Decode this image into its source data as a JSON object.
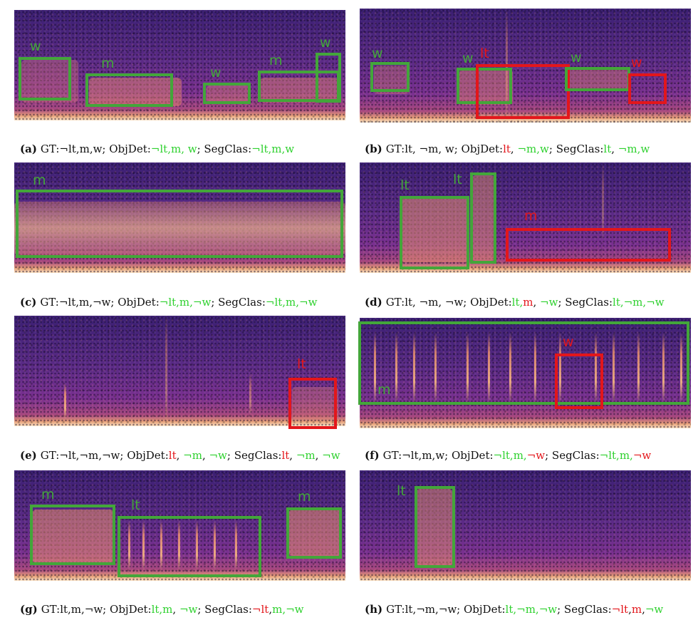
{
  "panels": [
    {
      "id": "a",
      "caption": {
        "letter": "(a)",
        "gt": "GT:¬lt,m,w; ",
        "parts": [
          {
            "t": "ObjDet:",
            "c": ""
          },
          {
            "t": "¬lt,",
            "c": "g"
          },
          {
            "t": "m, ",
            "c": "g"
          },
          {
            "t": "w",
            "c": "g"
          },
          {
            "t": "; SegClas:",
            "c": ""
          },
          {
            "t": "¬lt,",
            "c": "g"
          },
          {
            "t": "m,",
            "c": "g"
          },
          {
            "t": "w",
            "c": "g"
          }
        ]
      },
      "labels": [
        "w",
        "m",
        "w",
        "m",
        "w"
      ]
    },
    {
      "id": "b",
      "caption": {
        "letter": "(b)",
        "gt": "GT:lt, ¬m, w; ",
        "parts": [
          {
            "t": "ObjDet:",
            "c": ""
          },
          {
            "t": "lt",
            "c": "r"
          },
          {
            "t": ", ",
            "c": ""
          },
          {
            "t": "¬m,w",
            "c": "g"
          },
          {
            "t": "; SegClas:",
            "c": ""
          },
          {
            "t": "lt",
            "c": "g"
          },
          {
            "t": ", ",
            "c": ""
          },
          {
            "t": "¬m,w",
            "c": "g"
          }
        ]
      },
      "labels": [
        "w",
        "w",
        "lt",
        "w",
        "w"
      ]
    },
    {
      "id": "c",
      "caption": {
        "letter": "(c)",
        "gt": "GT:¬lt,m,¬w; ",
        "parts": [
          {
            "t": "ObjDet:",
            "c": ""
          },
          {
            "t": "¬lt,m,¬w",
            "c": "g"
          },
          {
            "t": "; SegClas:",
            "c": ""
          },
          {
            "t": "¬lt,m,¬w",
            "c": "g"
          }
        ]
      },
      "labels": [
        "m"
      ]
    },
    {
      "id": "d",
      "caption": {
        "letter": "(d)",
        "gt": "GT:lt, ¬m, ¬w; ",
        "parts": [
          {
            "t": "ObjDet:",
            "c": ""
          },
          {
            "t": "lt,",
            "c": "g"
          },
          {
            "t": "m",
            "c": "r"
          },
          {
            "t": ", ",
            "c": ""
          },
          {
            "t": "¬w",
            "c": "g"
          },
          {
            "t": "; SegClas:",
            "c": ""
          },
          {
            "t": "lt,¬m,¬w",
            "c": "g"
          }
        ]
      },
      "labels": [
        "lt",
        "lt",
        "m"
      ]
    },
    {
      "id": "e",
      "caption": {
        "letter": "(e)",
        "gt": "GT:¬lt,¬m,¬w; ",
        "parts": [
          {
            "t": "ObjDet:",
            "c": ""
          },
          {
            "t": "lt",
            "c": "r"
          },
          {
            "t": ", ",
            "c": ""
          },
          {
            "t": "¬m",
            "c": "g"
          },
          {
            "t": ", ",
            "c": ""
          },
          {
            "t": "¬w",
            "c": "g"
          },
          {
            "t": "; SegClas:",
            "c": ""
          },
          {
            "t": "lt",
            "c": "r"
          },
          {
            "t": ", ",
            "c": ""
          },
          {
            "t": "¬m",
            "c": "g"
          },
          {
            "t": ", ",
            "c": ""
          },
          {
            "t": "¬w",
            "c": "g"
          }
        ]
      },
      "labels": [
        "lt"
      ]
    },
    {
      "id": "f",
      "caption": {
        "letter": "(f)",
        "gt": "GT:¬lt,m,w; ",
        "parts": [
          {
            "t": "ObjDet:",
            "c": ""
          },
          {
            "t": "¬lt,m,",
            "c": "g"
          },
          {
            "t": "¬w",
            "c": "r"
          },
          {
            "t": "; SegClas:",
            "c": ""
          },
          {
            "t": "¬lt,m,",
            "c": "g"
          },
          {
            "t": "¬w",
            "c": "r"
          }
        ]
      },
      "labels": [
        "w",
        "m"
      ]
    },
    {
      "id": "g",
      "caption": {
        "letter": "(g)",
        "gt": "GT:lt,m,¬w; ",
        "parts": [
          {
            "t": "ObjDet:",
            "c": ""
          },
          {
            "t": "lt,m",
            "c": "g"
          },
          {
            "t": ", ",
            "c": ""
          },
          {
            "t": "¬w",
            "c": "g"
          },
          {
            "t": "; SegClas:",
            "c": ""
          },
          {
            "t": "¬lt",
            "c": "r"
          },
          {
            "t": ",",
            "c": ""
          },
          {
            "t": "m,¬w",
            "c": "g"
          }
        ]
      },
      "labels": [
        "m",
        "lt",
        "m"
      ]
    },
    {
      "id": "h",
      "caption": {
        "letter": "(h)",
        "gt": "GT:lt,¬m,¬w; ",
        "parts": [
          {
            "t": "ObjDet:",
            "c": ""
          },
          {
            "t": "lt,¬m,¬w",
            "c": "g"
          },
          {
            "t": "; SegClas:",
            "c": ""
          },
          {
            "t": "¬lt",
            "c": "r"
          },
          {
            "t": ",",
            "c": ""
          },
          {
            "t": "m",
            "c": "r"
          },
          {
            "t": ",",
            "c": ""
          },
          {
            "t": "¬w",
            "c": "g"
          }
        ]
      },
      "labels": [
        "lt"
      ]
    }
  ],
  "colors": {
    "correct": "#2fd12f",
    "incorrect": "#e3161b",
    "box_green": "#43a63a",
    "box_red": "#e3161b"
  }
}
